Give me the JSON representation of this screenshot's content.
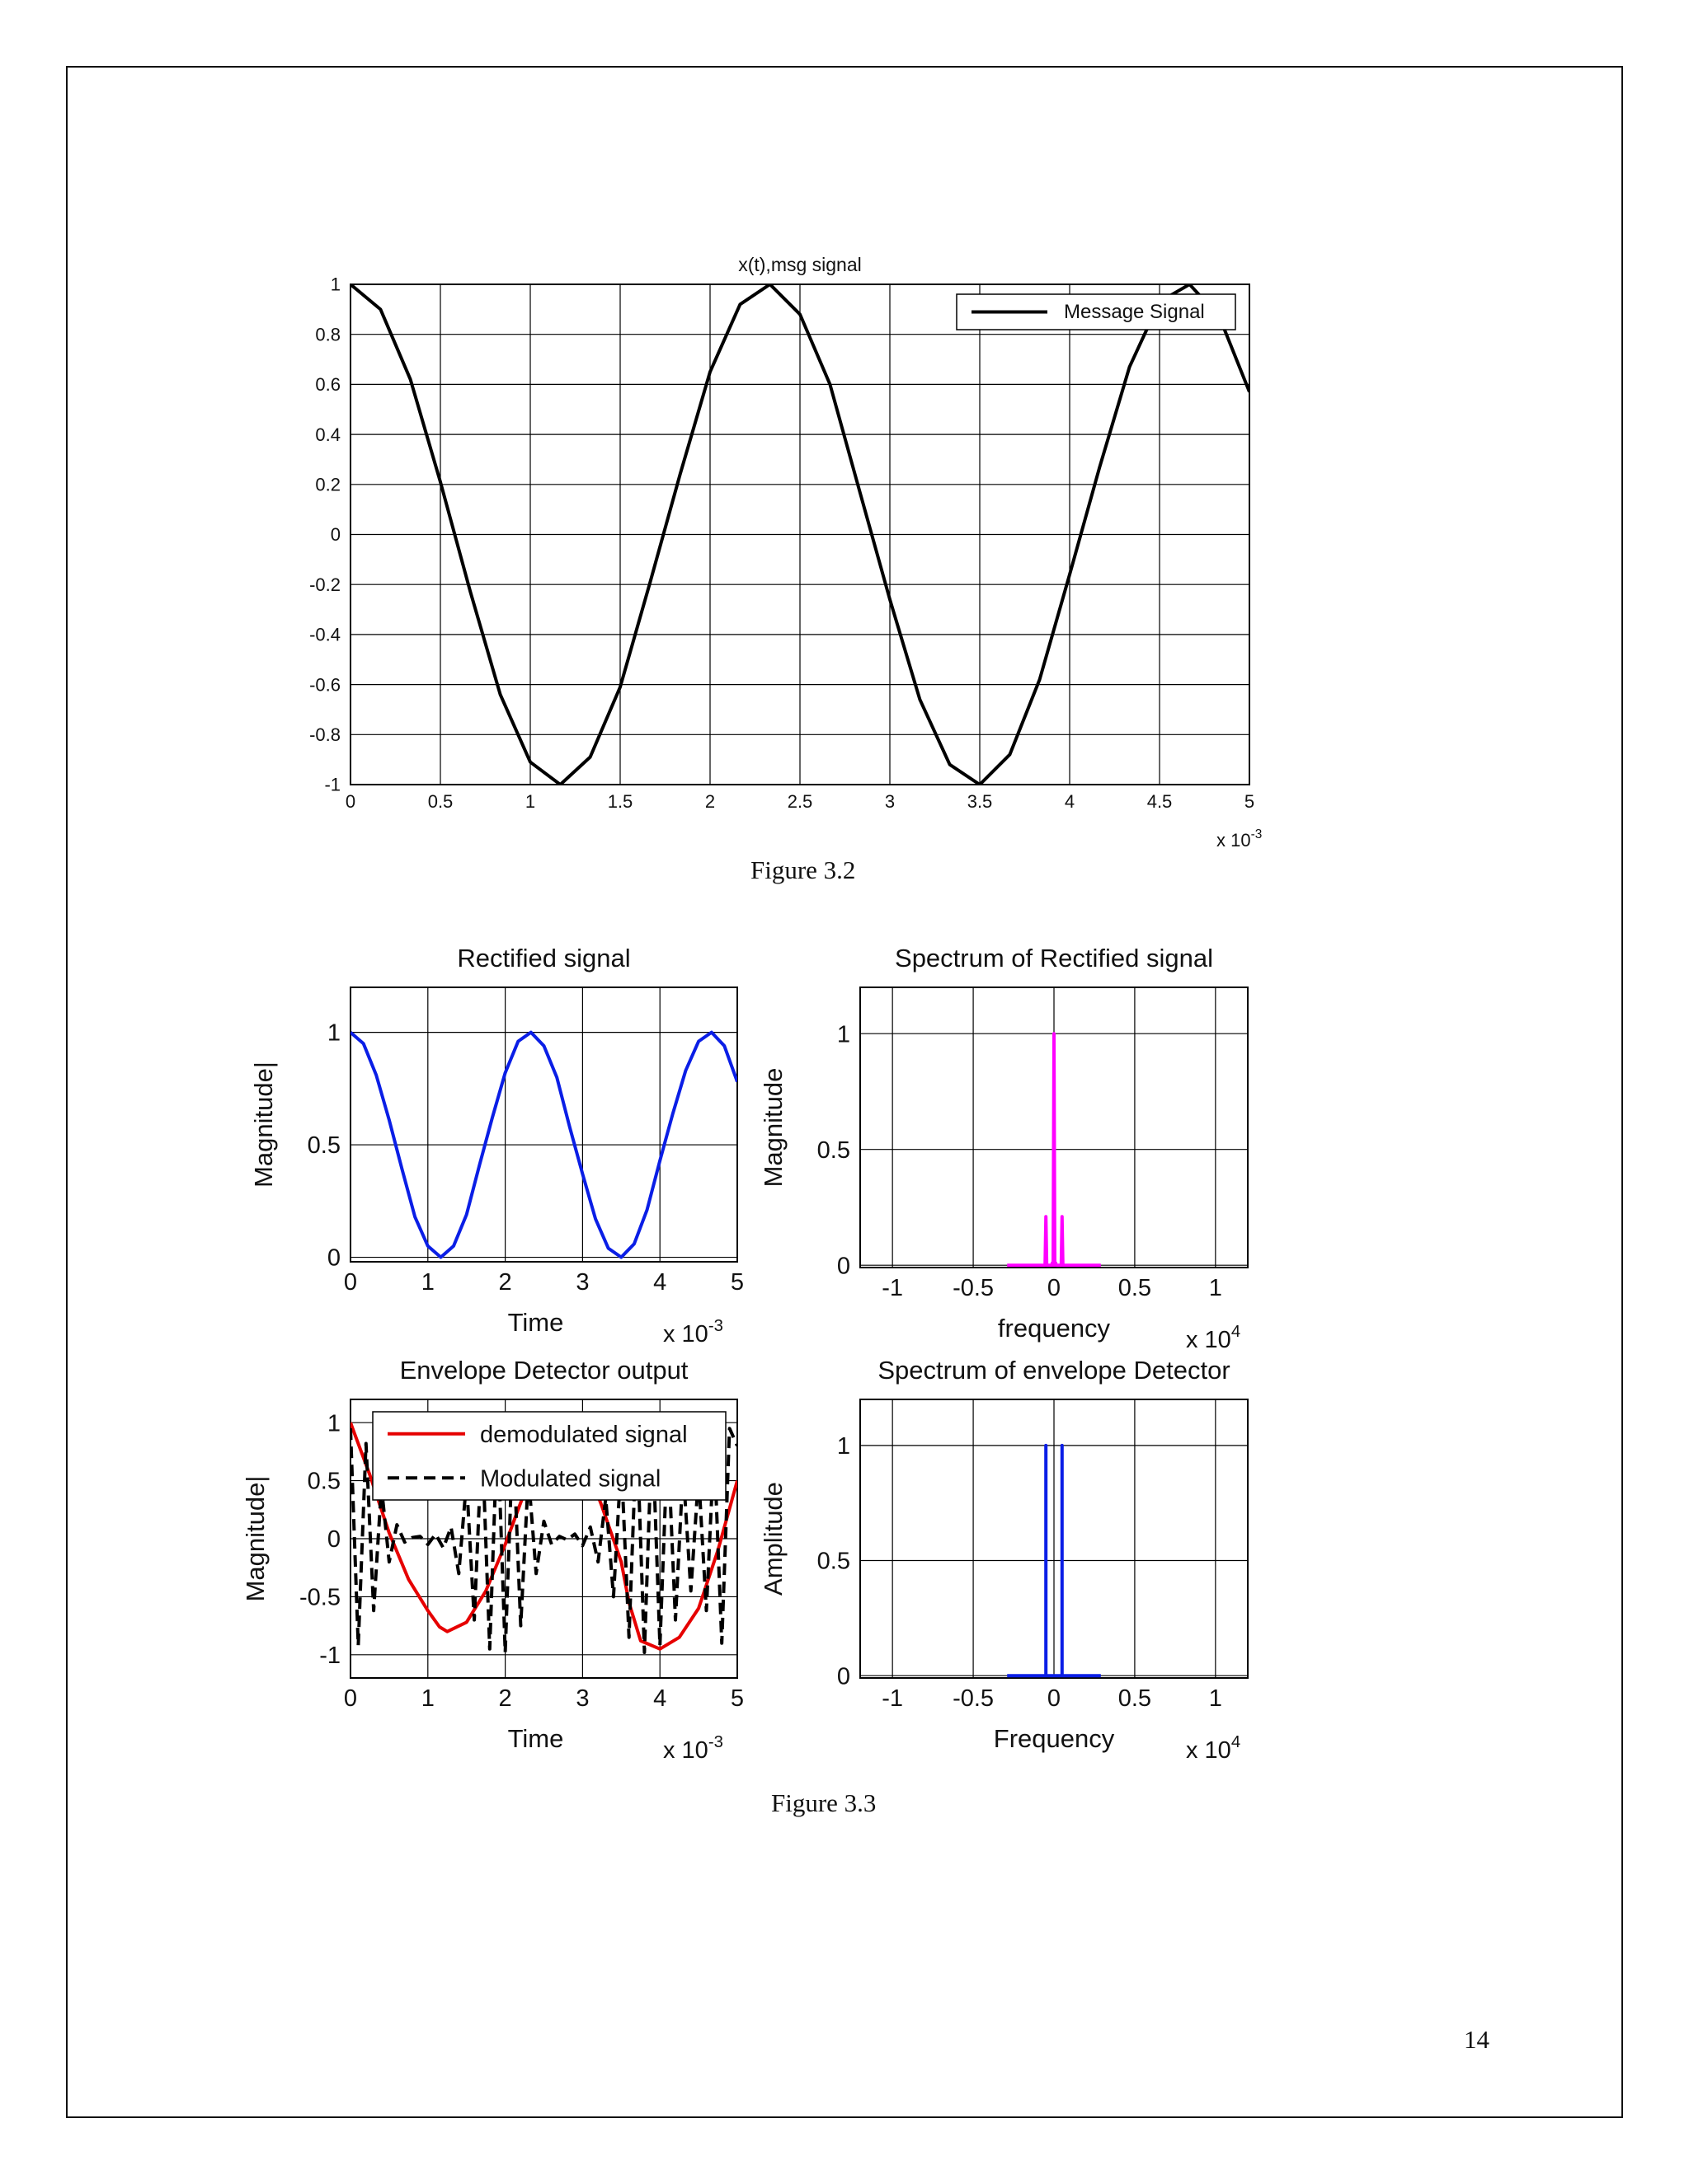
{
  "page": {
    "number": "14"
  },
  "captions": {
    "fig32": "Figure 3.2",
    "fig33": "Figure 3.3"
  },
  "chart_data": [
    {
      "id": "msg",
      "type": "line",
      "title": "x(t),msg signal",
      "xlabel": "",
      "ylabel": "",
      "xlim": [
        0,
        0.005
      ],
      "ylim": [
        -1,
        1
      ],
      "xticks": [
        0,
        0.0005,
        0.001,
        0.0015,
        0.002,
        0.0025,
        0.003,
        0.0035,
        0.004,
        0.0045,
        0.005
      ],
      "xtick_labels": [
        "0",
        "0.5",
        "1",
        "1.5",
        "2",
        "2.5",
        "3",
        "3.5",
        "4",
        "4.5",
        "5"
      ],
      "yticks": [
        -1,
        -0.8,
        -0.6,
        -0.4,
        -0.2,
        0,
        0.2,
        0.4,
        0.6,
        0.8,
        1
      ],
      "ytick_labels": [
        "-1",
        "-0.8",
        "-0.6",
        "-0.4",
        "-0.2",
        "0",
        "0.2",
        "0.4",
        "0.6",
        "0.8",
        "1"
      ],
      "x_multiplier": "x 10",
      "x_multiplier_exp": "-3",
      "grid": true,
      "legend": "top-right",
      "series": [
        {
          "name": "Message Signal",
          "color": "#000000",
          "dash": "solid",
          "formula": "cos(2*pi*430*t)",
          "x": [
            0,
            0.000167,
            0.000333,
            0.0005,
            0.000667,
            0.000833,
            0.001,
            0.001167,
            0.001333,
            0.0015,
            0.001667,
            0.001833,
            0.002,
            0.002167,
            0.002333,
            0.0025,
            0.002667,
            0.002833,
            0.003,
            0.003167,
            0.003333,
            0.0035,
            0.003667,
            0.003833,
            0.004,
            0.004167,
            0.004333,
            0.0045,
            0.004667,
            0.004833,
            0.005
          ],
          "y": [
            1,
            0.9,
            0.62,
            0.21,
            -0.23,
            -0.64,
            -0.91,
            -1,
            -0.89,
            -0.61,
            -0.19,
            0.24,
            0.65,
            0.92,
            1,
            0.88,
            0.6,
            0.17,
            -0.26,
            -0.66,
            -0.92,
            -1,
            -0.88,
            -0.58,
            -0.16,
            0.27,
            0.67,
            0.93,
            1,
            0.87,
            0.57
          ]
        }
      ]
    },
    {
      "id": "rect",
      "type": "line",
      "title": "Rectified signal",
      "xlabel": "Time",
      "ylabel": "Magnitude|",
      "xlim": [
        0,
        0.005
      ],
      "ylim": [
        -0.02,
        1.2
      ],
      "xticks": [
        0,
        0.001,
        0.002,
        0.003,
        0.004,
        0.005
      ],
      "xtick_labels": [
        "0",
        "1",
        "2",
        "3",
        "4",
        "5"
      ],
      "yticks": [
        0,
        0.5,
        1
      ],
      "ytick_labels": [
        "0",
        "0.5",
        "1"
      ],
      "x_multiplier": "x 10",
      "x_multiplier_exp": "-3",
      "grid": true,
      "series": [
        {
          "name": "",
          "color": "#0a1ee6",
          "dash": "solid",
          "x": [
            0,
            0.000167,
            0.000333,
            0.0005,
            0.000667,
            0.000833,
            0.001,
            0.001167,
            0.001333,
            0.0015,
            0.001667,
            0.001833,
            0.002,
            0.002167,
            0.002333,
            0.0025,
            0.002667,
            0.002833,
            0.003,
            0.003167,
            0.003333,
            0.0035,
            0.003667,
            0.003833,
            0.004,
            0.004167,
            0.004333,
            0.0045,
            0.004667,
            0.004833,
            0.005
          ],
          "y": [
            1,
            0.95,
            0.81,
            0.61,
            0.39,
            0.18,
            0.05,
            0,
            0.05,
            0.19,
            0.41,
            0.62,
            0.82,
            0.96,
            1,
            0.94,
            0.8,
            0.58,
            0.37,
            0.17,
            0.04,
            0,
            0.06,
            0.21,
            0.43,
            0.64,
            0.83,
            0.96,
            1,
            0.94,
            0.78
          ]
        }
      ]
    },
    {
      "id": "spec1",
      "type": "line",
      "title": "Spectrum of Rectified signal",
      "xlabel": "frequency",
      "ylabel": "Magnitude",
      "xlim": [
        -12000,
        12000
      ],
      "ylim": [
        -0.01,
        1.2
      ],
      "xticks": [
        -10000,
        -5000,
        0,
        5000,
        10000
      ],
      "xtick_labels": [
        "-1",
        "-0.5",
        "0",
        "0.5",
        "1"
      ],
      "yticks": [
        0,
        0.5,
        1
      ],
      "ytick_labels": [
        "0",
        "0.5",
        "1"
      ],
      "x_multiplier": "x 10",
      "x_multiplier_exp": "4",
      "grid": true,
      "series": [
        {
          "name": "",
          "color": "#ff00ff",
          "dash": "solid",
          "x": [
            -2900,
            -600,
            -550,
            -500,
            -450,
            -150,
            -100,
            -50,
            0,
            50,
            100,
            150,
            450,
            500,
            550,
            600,
            2900
          ],
          "y": [
            0,
            0,
            0,
            0.21,
            0,
            0,
            0.01,
            0,
            1,
            0,
            0.01,
            0,
            0,
            0.21,
            0,
            0,
            0
          ]
        }
      ]
    },
    {
      "id": "env",
      "type": "line",
      "title": "Envelope Detector output",
      "xlabel": "Time",
      "ylabel": "Magnitude|",
      "xlim": [
        0,
        0.005
      ],
      "ylim": [
        -1.2,
        1.2
      ],
      "xticks": [
        0,
        0.001,
        0.002,
        0.003,
        0.004,
        0.005
      ],
      "xtick_labels": [
        "0",
        "1",
        "2",
        "3",
        "4",
        "5"
      ],
      "yticks": [
        -1,
        -0.5,
        0,
        0.5,
        1
      ],
      "ytick_labels": [
        "-1",
        "-0.5",
        "0",
        "0.5",
        "1"
      ],
      "x_multiplier": "x 10",
      "x_multiplier_exp": "-3",
      "grid": true,
      "legend": "top",
      "series": [
        {
          "name": "demodulated signal",
          "color": "#e60000",
          "dash": "solid",
          "x": [
            0,
            0.00025,
            0.0005,
            0.00075,
            0.001,
            0.00115,
            0.00125,
            0.0015,
            0.00175,
            0.002,
            0.00225,
            0.0025,
            0.00275,
            0.003,
            0.00325,
            0.0035,
            0.0036,
            0.00375,
            0.004,
            0.00425,
            0.0045,
            0.00475,
            0.005
          ],
          "y": [
            1,
            0.55,
            0.05,
            -0.35,
            -0.62,
            -0.76,
            -0.8,
            -0.72,
            -0.45,
            -0.05,
            0.4,
            0.78,
            0.92,
            0.72,
            0.28,
            -0.2,
            -0.55,
            -0.88,
            -0.95,
            -0.85,
            -0.6,
            -0.1,
            0.5
          ]
        },
        {
          "name": "Modulated signal",
          "color": "#000000",
          "dash": "dashed",
          "x": [
            0,
            0.0001,
            0.0002,
            0.0003,
            0.0004,
            0.0005,
            0.0006,
            0.0007,
            0.0008,
            0.0009,
            0.001,
            0.0011,
            0.0012,
            0.0013,
            0.0014,
            0.0015,
            0.0016,
            0.0017,
            0.0018,
            0.0019,
            0.002,
            0.0021,
            0.0022,
            0.0023,
            0.0024,
            0.0025,
            0.0026,
            0.0027,
            0.0028,
            0.0029,
            0.003,
            0.0031,
            0.0032,
            0.0033,
            0.0034,
            0.0035,
            0.0036,
            0.0037,
            0.0038,
            0.0039,
            0.004,
            0.0041,
            0.0042,
            0.0043,
            0.0044,
            0.0045,
            0.0046,
            0.0047,
            0.0048,
            0.0049,
            0.005
          ],
          "y": [
            0.95,
            -0.92,
            0.82,
            -0.62,
            0.45,
            -0.2,
            0.12,
            -0.03,
            0.01,
            0.02,
            -0.05,
            0.04,
            -0.08,
            0.1,
            -0.3,
            0.5,
            -0.7,
            0.88,
            -0.95,
            0.97,
            -0.98,
            0.9,
            -0.75,
            0.55,
            -0.3,
            0.15,
            -0.05,
            0.02,
            -0.01,
            0.04,
            -0.06,
            0.1,
            -0.2,
            0.35,
            -0.5,
            0.68,
            -0.85,
            0.95,
            -0.98,
            0.97,
            -0.92,
            0.85,
            -0.7,
            0.6,
            -0.45,
            0.55,
            -0.62,
            0.8,
            -0.9,
            0.95,
            0.8
          ]
        }
      ]
    },
    {
      "id": "spec2",
      "type": "line",
      "title": "Spectrum of envelope Detector",
      "xlabel": "Frequency",
      "ylabel": "Amplitude",
      "xlim": [
        -12000,
        12000
      ],
      "ylim": [
        -0.01,
        1.2
      ],
      "xticks": [
        -10000,
        -5000,
        0,
        5000,
        10000
      ],
      "xtick_labels": [
        "-1",
        "-0.5",
        "0",
        "0.5",
        "1"
      ],
      "yticks": [
        0,
        0.5,
        1
      ],
      "ytick_labels": [
        "0",
        "0.5",
        "1"
      ],
      "x_multiplier": "x 10",
      "x_multiplier_exp": "4",
      "grid": true,
      "series": [
        {
          "name": "",
          "color": "#0a1ee6",
          "dash": "solid",
          "x": [
            -2900,
            -500,
            -500,
            -500,
            500,
            500,
            500,
            2900
          ],
          "y": [
            0,
            0,
            1,
            0,
            0,
            1,
            0,
            0
          ]
        }
      ]
    }
  ]
}
